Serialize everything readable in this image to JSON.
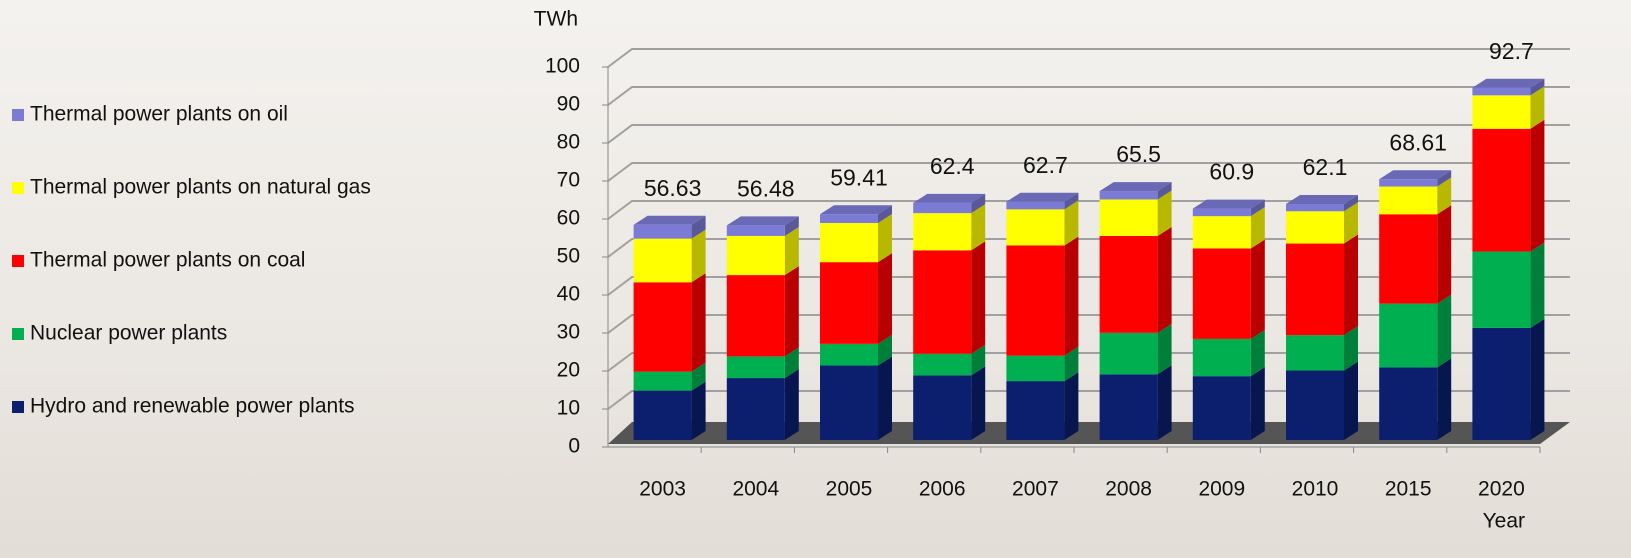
{
  "chart_data": {
    "type": "bar3d_stacked",
    "y_label": "TWh",
    "x_label": "Year",
    "categories": [
      "2003",
      "2004",
      "2005",
      "2006",
      "2007",
      "2008",
      "2009",
      "2010",
      "2015",
      "2020"
    ],
    "series": [
      {
        "name": "Hydro and renewable power plants",
        "color": "#0b1f6e",
        "values": [
          13,
          16.3,
          19.6,
          17,
          15.5,
          17.3,
          16.8,
          18.3,
          19.1,
          29.5
        ]
      },
      {
        "name": "Nuclear power plants",
        "color": "#00b050",
        "values": [
          5,
          5.7,
          5.7,
          5.7,
          6.7,
          10.9,
          9.8,
          9.3,
          16.8,
          20.1
        ]
      },
      {
        "name": "Thermal power plants on coal",
        "color": "#ff0000",
        "values": [
          23.5,
          21.4,
          21.5,
          27.2,
          29,
          25.5,
          23.8,
          24.1,
          23.5,
          32.3
        ]
      },
      {
        "name": "Thermal power plants on natural gas",
        "color": "#ffff00",
        "values": [
          11.5,
          10.3,
          10.3,
          9.8,
          9.5,
          9.6,
          8.5,
          8.5,
          7.3,
          8.8
        ]
      },
      {
        "name": "Thermal power plants on oil",
        "color": "#7b7bd6",
        "values": [
          3.63,
          2.78,
          2.31,
          2.7,
          2,
          2.2,
          2,
          1.9,
          1.91,
          2
        ]
      }
    ],
    "totals": [
      56.63,
      56.48,
      59.41,
      62.4,
      62.7,
      65.5,
      60.9,
      62.1,
      68.61,
      92.7
    ],
    "ylim": [
      0,
      100
    ],
    "yticks": [
      0,
      10,
      20,
      30,
      40,
      50,
      60,
      70,
      80,
      90,
      100
    ],
    "grid": true
  }
}
